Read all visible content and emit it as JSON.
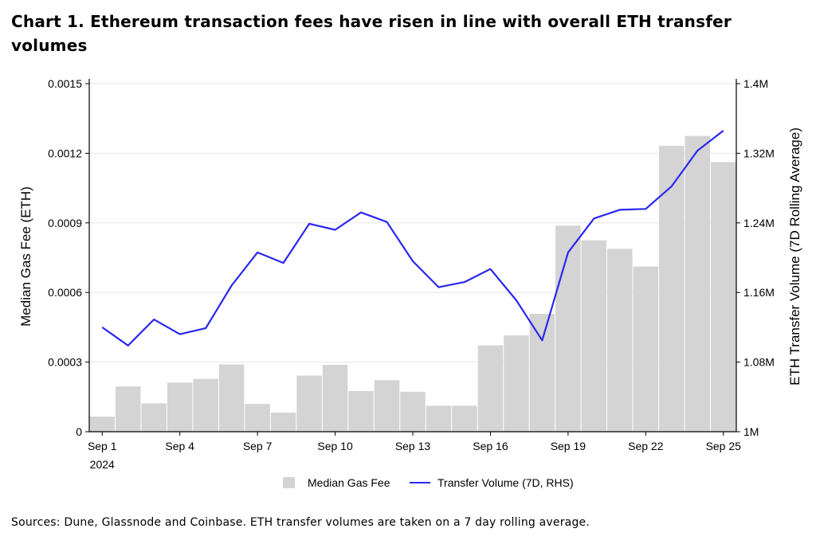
{
  "title": "Chart 1. Ethereum transaction fees have risen in line with overall ETH transfer volumes",
  "source_note": "Sources: Dune, Glassnode and Coinbase. ETH transfer volumes are taken on a 7 day rolling average.",
  "colors": {
    "bars": "#d4d4d4",
    "line": "#2a27f0",
    "grid": "#e6e6e6",
    "axis": "#000000"
  },
  "chart_data": {
    "type": "bar",
    "ylabel": "Median Gas Fee (ETH)",
    "y2label": "ETH Transfer Volume (7D Rolling Average)",
    "ylim": [
      0,
      0.0015
    ],
    "y2lim": [
      1000000,
      1400000
    ],
    "yticks": [
      "0",
      "0.0003",
      "0.0006",
      "0.0009",
      "0.0012",
      "0.0015"
    ],
    "y2ticks": [
      "1M",
      "1.08M",
      "1.16M",
      "1.24M",
      "1.32M",
      "1.4M"
    ],
    "xtick_labels": [
      "Sep 1",
      "Sep 4",
      "Sep 7",
      "Sep 10",
      "Sep 13",
      "Sep 16",
      "Sep 19",
      "Sep 22",
      "Sep 25"
    ],
    "xtick_sublabel": "2024",
    "grid": true,
    "legend_position": "bottom",
    "categories": [
      "Sep 1",
      "Sep 2",
      "Sep 3",
      "Sep 4",
      "Sep 5",
      "Sep 6",
      "Sep 7",
      "Sep 8",
      "Sep 9",
      "Sep 10",
      "Sep 11",
      "Sep 12",
      "Sep 13",
      "Sep 14",
      "Sep 15",
      "Sep 16",
      "Sep 17",
      "Sep 18",
      "Sep 19",
      "Sep 20",
      "Sep 21",
      "Sep 22",
      "Sep 23",
      "Sep 24",
      "Sep 25"
    ],
    "series": [
      {
        "name": "Median Gas Fee",
        "type": "bar",
        "axis": "left",
        "values": [
          6.5e-05,
          0.000195,
          0.000122,
          0.000212,
          0.000228,
          0.00029,
          0.00012,
          8.2e-05,
          0.000242,
          0.000288,
          0.000175,
          0.000222,
          0.000172,
          0.000112,
          0.000112,
          0.000372,
          0.000415,
          0.000508,
          0.000888,
          0.000825,
          0.000788,
          0.000712,
          0.001232,
          0.001275,
          0.001162
        ]
      },
      {
        "name": "Transfer Volume (7D, RHS)",
        "type": "line",
        "axis": "right",
        "values": [
          1120000,
          1099000,
          1129000,
          1112000,
          1119000,
          1168000,
          1206000,
          1194000,
          1239000,
          1232000,
          1252000,
          1241000,
          1196000,
          1166000,
          1172000,
          1187000,
          1151000,
          1105000,
          1206000,
          1245000,
          1255000,
          1256000,
          1282000,
          1323000,
          1346000
        ]
      }
    ]
  }
}
